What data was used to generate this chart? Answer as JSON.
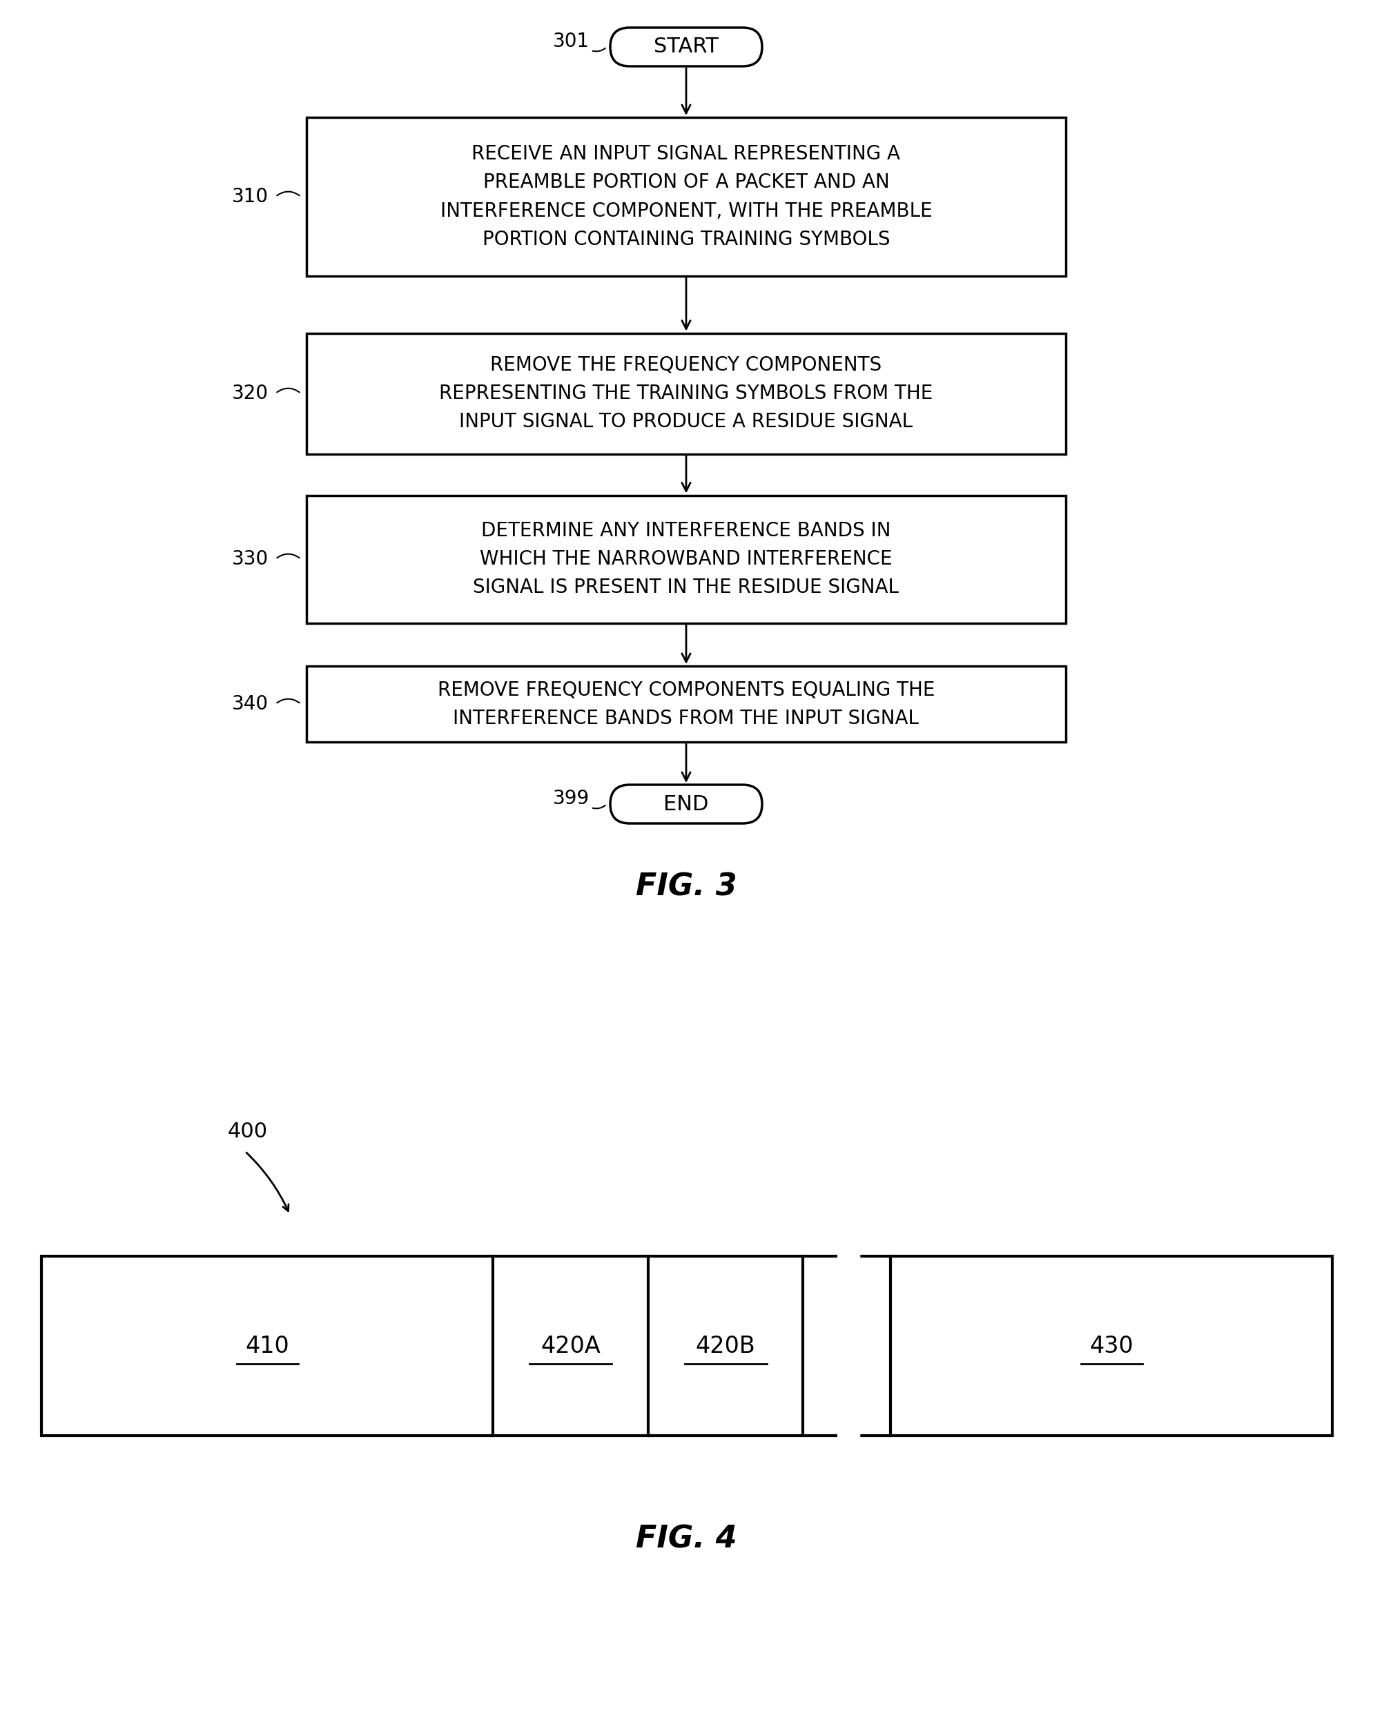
{
  "bg_color": "#ffffff",
  "fig3": {
    "title": "FIG. 3",
    "start_label": "301",
    "end_label": "399",
    "start_text": "START",
    "end_text": "END",
    "box_texts": [
      "RECEIVE AN INPUT SIGNAL REPRESENTING A\nPREAMBLE PORTION OF A PACKET AND AN\nINTERFERENCE COMPONENT, WITH THE PREAMBLE\nPORTION CONTAINING TRAINING SYMBOLS",
      "REMOVE THE FREQUENCY COMPONENTS\nREPRESENTING THE TRAINING SYMBOLS FROM THE\nINPUT SIGNAL TO PRODUCE A RESIDUE SIGNAL",
      "DETERMINE ANY INTERFERENCE BANDS IN\nWHICH THE NARROWBAND INTERFERENCE\nSIGNAL IS PRESENT IN THE RESIDUE SIGNAL",
      "REMOVE FREQUENCY COMPONENTS EQUALING THE\nINTERFERENCE BANDS FROM THE INPUT SIGNAL"
    ],
    "box_labels": [
      "310",
      "320",
      "330",
      "340"
    ]
  },
  "fig4": {
    "title": "FIG. 4",
    "diagram_label": "400",
    "cell_labels": [
      "410",
      "420A",
      "420B",
      "430"
    ]
  }
}
